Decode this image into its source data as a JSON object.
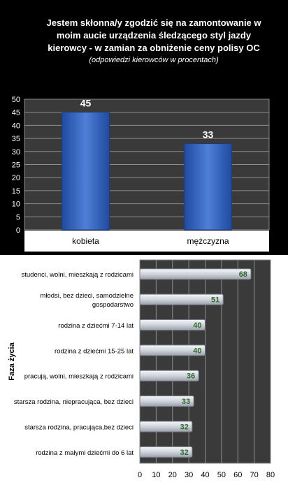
{
  "title": {
    "line1": "Jestem skłonna/y zgodzić się na zamontowanie w",
    "line2": "moim aucie urządzenia śledzącego styl jazdy",
    "line3": "kierowcy - w zamian za obniżenie ceny polisy OC",
    "subtitle": "(odpowiedzi  kierowców w procentach)"
  },
  "colors": {
    "bar_top": "#4f7fd6",
    "bar_bottom": "#1f4aa0",
    "plot_bg": "#3a3a3a",
    "bar2_fill": "#d0d4dc",
    "value_green": "#2f6b2a"
  },
  "chart_data": [
    {
      "type": "bar",
      "categories": [
        "kobieta",
        "mężczyzna"
      ],
      "values": [
        45,
        33
      ],
      "ylim": [
        0,
        50
      ],
      "yticks": [
        "0",
        "5",
        "10",
        "15",
        "20",
        "25",
        "30",
        "35",
        "40",
        "45",
        "50"
      ],
      "grid": true
    },
    {
      "type": "bar",
      "orientation": "horizontal",
      "ylabel": "Faza życia",
      "categories": [
        "studenci, wolni, mieszkają z rodzicami",
        "młodsi, bez dzieci, samodzielne gospodarstwo",
        "rodzina z dziećmi 7-14 lat",
        "rodzina z dziećmi 15-25 lat",
        "pracują, wolni, mieszkają z rodzicami",
        "starsza rodzina, niepracująca, bez dzieci",
        "starsza rodzina, pracująca,bez dzieci",
        "rodzina z małymi dziećmi do 6 lat"
      ],
      "category_lines": [
        [
          "studenci, wolni, mieszkają z rodzicami"
        ],
        [
          "młodsi, bez dzieci, samodzielne",
          "gospodarstwo"
        ],
        [
          "rodzina z dziećmi 7-14 lat"
        ],
        [
          "rodzina z dziećmi 15-25 lat"
        ],
        [
          "pracują, wolni, mieszkają z rodzicami"
        ],
        [
          "starsza rodzina, niepracująca, bez dzieci"
        ],
        [
          "starsza rodzina, pracująca,bez dzieci"
        ],
        [
          "rodzina z małymi dziećmi do 6 lat"
        ]
      ],
      "values": [
        68,
        51,
        40,
        40,
        36,
        33,
        32,
        32
      ],
      "xlim": [
        0,
        80
      ],
      "xticks": [
        "0",
        "10",
        "20",
        "30",
        "40",
        "50",
        "60",
        "70",
        "80"
      ],
      "grid": true
    }
  ]
}
